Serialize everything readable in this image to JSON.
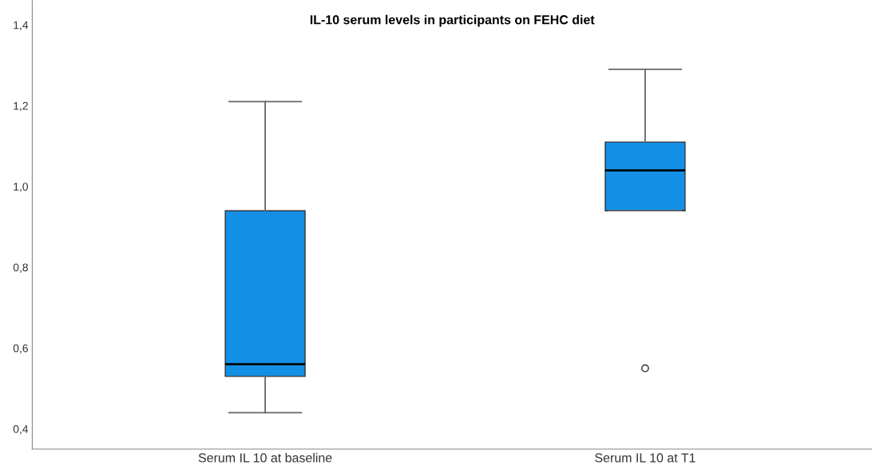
{
  "chart_data": {
    "type": "box",
    "title": "IL-10 serum levels in participants on FEHC diet",
    "categories": [
      "Serum IL 10 at baseline",
      "Serum IL 10 at T1"
    ],
    "boxes": [
      {
        "low": 0.44,
        "q1": 0.53,
        "median": 0.56,
        "q3": 0.94,
        "high": 1.21
      },
      {
        "low": 0.94,
        "q1": 0.94,
        "median": 1.04,
        "q3": 1.11,
        "high": 1.29,
        "outliers": [
          0.55
        ]
      }
    ],
    "color": "#1390e6",
    "ylim": [
      0.35,
      1.46
    ],
    "yticks": [
      {
        "value": 0.4,
        "label": "0,4"
      },
      {
        "value": 0.6,
        "label": "0,6"
      },
      {
        "value": 0.8,
        "label": "0,8"
      },
      {
        "value": 1.0,
        "label": "1,0"
      },
      {
        "value": 1.2,
        "label": "1,2"
      },
      {
        "value": 1.4,
        "label": "1,4"
      }
    ],
    "grid": false
  }
}
